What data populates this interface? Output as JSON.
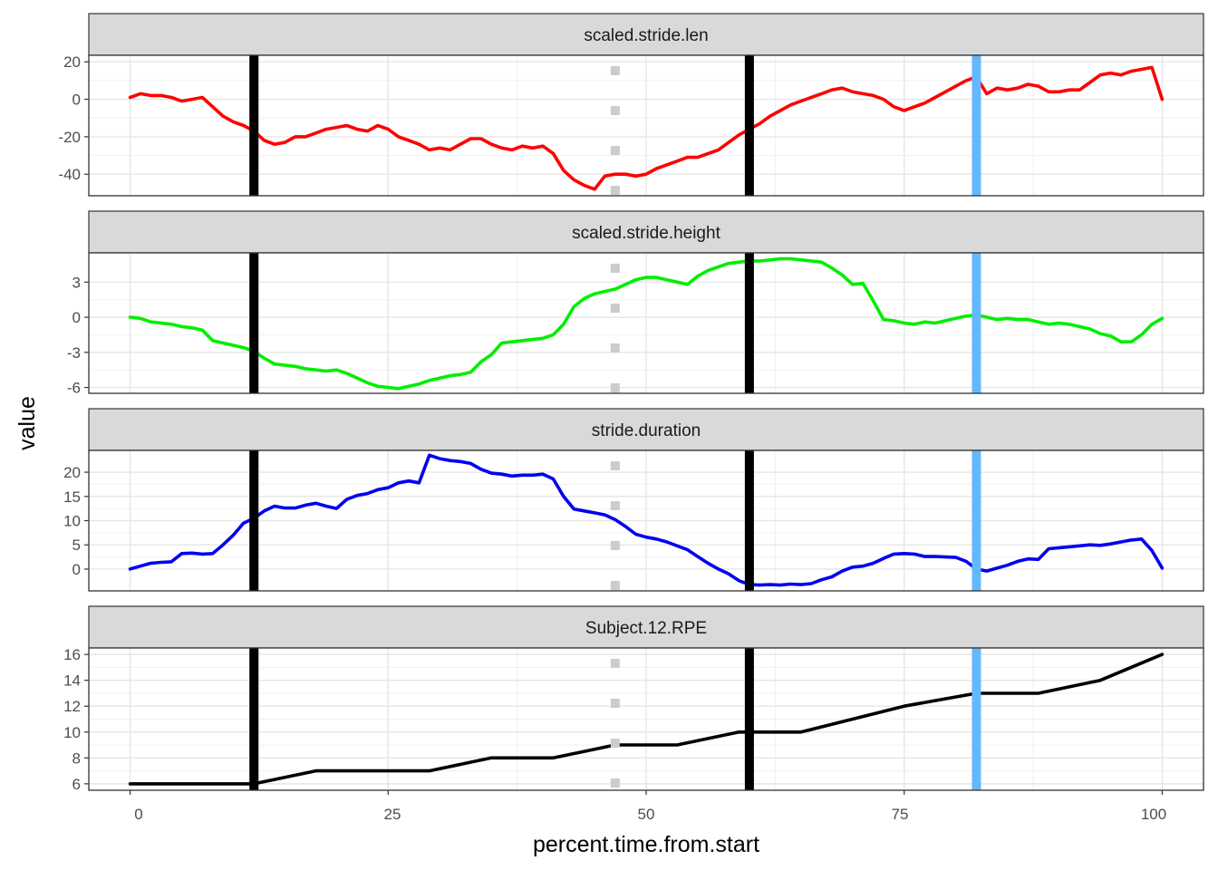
{
  "chart_data": {
    "type": "line",
    "x_label": "percent.time.from.start",
    "y_label": "value",
    "x_ticks": [
      "0",
      "25",
      "50",
      "75",
      "100"
    ],
    "xlim": [
      -4,
      104
    ],
    "vlines": [
      {
        "x": 12,
        "color": "#000000",
        "style": "solid"
      },
      {
        "x": 47,
        "color": "#cccccc",
        "style": "dotted"
      },
      {
        "x": 60,
        "color": "#000000",
        "style": "solid"
      },
      {
        "x": 82,
        "color": "#63b8ff",
        "style": "solid"
      }
    ],
    "panels": [
      {
        "title": "scaled.stride.len",
        "color": "#ff0000",
        "ylim": [
          -51.5,
          23.5
        ],
        "y_ticks": [
          20,
          0,
          -20,
          -40
        ],
        "y_tick_labels": [
          "20",
          "0",
          "-20",
          "-40"
        ],
        "x": [
          0,
          1,
          2,
          3,
          4,
          5,
          6,
          7,
          8,
          9,
          10,
          11,
          12,
          13,
          14,
          15,
          16,
          17,
          18,
          19,
          20,
          21,
          22,
          23,
          24,
          25,
          26,
          27,
          28,
          29,
          30,
          31,
          32,
          33,
          34,
          35,
          36,
          37,
          38,
          39,
          40,
          41,
          42,
          43,
          44,
          45,
          46,
          47,
          48,
          49,
          50,
          51,
          52,
          53,
          54,
          55,
          56,
          57,
          58,
          59,
          60,
          61,
          62,
          63,
          64,
          65,
          66,
          67,
          68,
          69,
          70,
          71,
          72,
          73,
          74,
          75,
          76,
          77,
          78,
          79,
          80,
          81,
          82,
          83,
          84,
          85,
          86,
          87,
          88,
          89,
          90,
          91,
          92,
          93,
          94,
          95,
          96,
          97,
          98,
          99,
          100
        ],
        "values": [
          1,
          3,
          2,
          2,
          1,
          -1,
          0,
          1,
          -4,
          -9,
          -12,
          -14,
          -17,
          -22,
          -24,
          -23,
          -20,
          -20,
          -18,
          -16,
          -15,
          -14,
          -16,
          -17,
          -14,
          -16,
          -20,
          -22,
          -24,
          -27,
          -26,
          -27,
          -24,
          -21,
          -21,
          -24,
          -26,
          -27,
          -25,
          -26,
          -25,
          -29,
          -38,
          -43,
          -46,
          -48,
          -41,
          -40,
          -40,
          -41,
          -40,
          -37,
          -35,
          -33,
          -31,
          -31,
          -29,
          -27,
          -23,
          -19,
          -16,
          -13,
          -9,
          -6,
          -3,
          -1,
          1,
          3,
          5,
          6,
          4,
          3,
          2,
          0,
          -4,
          -6,
          -4,
          -2,
          1,
          4,
          7,
          10,
          12,
          3,
          6,
          5,
          6,
          8,
          7,
          4,
          4,
          5,
          5,
          9,
          13,
          14,
          13,
          15,
          16,
          17,
          0
        ]
      },
      {
        "title": "scaled.stride.height",
        "color": "#00ee00",
        "ylim": [
          -6.5,
          5.5
        ],
        "y_ticks": [
          3,
          0,
          -3,
          -6
        ],
        "y_tick_labels": [
          "3",
          "0",
          "-3",
          "-6"
        ],
        "x": [
          0,
          1,
          2,
          3,
          4,
          5,
          6,
          7,
          8,
          9,
          10,
          11,
          12,
          13,
          14,
          15,
          16,
          17,
          18,
          19,
          20,
          21,
          22,
          23,
          24,
          25,
          26,
          27,
          28,
          29,
          30,
          31,
          32,
          33,
          34,
          35,
          36,
          37,
          38,
          39,
          40,
          41,
          42,
          43,
          44,
          45,
          46,
          47,
          48,
          49,
          50,
          51,
          52,
          53,
          54,
          55,
          56,
          57,
          58,
          59,
          60,
          61,
          62,
          63,
          64,
          65,
          66,
          67,
          68,
          69,
          70,
          71,
          72,
          73,
          74,
          75,
          76,
          77,
          78,
          79,
          80,
          81,
          82,
          83,
          84,
          85,
          86,
          87,
          88,
          89,
          90,
          91,
          92,
          93,
          94,
          95,
          96,
          97,
          98,
          99,
          100
        ],
        "values": [
          0,
          -0.1,
          -0.4,
          -0.5,
          -0.6,
          -0.8,
          -0.9,
          -1.1,
          -2.0,
          -2.2,
          -2.4,
          -2.6,
          -2.9,
          -3.5,
          -4.0,
          -4.1,
          -4.2,
          -4.4,
          -4.5,
          -4.6,
          -4.5,
          -4.8,
          -5.2,
          -5.6,
          -5.9,
          -6.0,
          -6.1,
          -5.9,
          -5.7,
          -5.4,
          -5.2,
          -5.0,
          -4.9,
          -4.7,
          -3.8,
          -3.2,
          -2.2,
          -2.1,
          -2.0,
          -1.9,
          -1.8,
          -1.5,
          -0.6,
          0.9,
          1.6,
          2.0,
          2.2,
          2.4,
          2.8,
          3.2,
          3.4,
          3.4,
          3.2,
          3.0,
          2.8,
          3.5,
          4.0,
          4.3,
          4.6,
          4.7,
          4.8,
          4.8,
          4.9,
          5.0,
          5.0,
          4.9,
          4.8,
          4.7,
          4.2,
          3.6,
          2.8,
          2.9,
          1.4,
          -0.2,
          -0.3,
          -0.5,
          -0.6,
          -0.4,
          -0.5,
          -0.3,
          -0.1,
          0.1,
          0.2,
          0.0,
          -0.2,
          -0.1,
          -0.2,
          -0.2,
          -0.4,
          -0.6,
          -0.5,
          -0.6,
          -0.8,
          -1.0,
          -1.4,
          -1.6,
          -2.1,
          -2.1,
          -1.5,
          -0.6,
          -0.1
        ]
      },
      {
        "title": "stride.duration",
        "color": "#0000ee",
        "ylim": [
          -4.5,
          24.5
        ],
        "y_ticks": [
          20,
          15,
          10,
          5,
          0
        ],
        "y_tick_labels": [
          "20",
          "15",
          "10",
          "5",
          "0"
        ],
        "x": [
          0,
          1,
          2,
          3,
          4,
          5,
          6,
          7,
          8,
          9,
          10,
          11,
          12,
          13,
          14,
          15,
          16,
          17,
          18,
          19,
          20,
          21,
          22,
          23,
          24,
          25,
          26,
          27,
          28,
          29,
          30,
          31,
          32,
          33,
          34,
          35,
          36,
          37,
          38,
          39,
          40,
          41,
          42,
          43,
          44,
          45,
          46,
          47,
          48,
          49,
          50,
          51,
          52,
          53,
          54,
          55,
          56,
          57,
          58,
          59,
          60,
          61,
          62,
          63,
          64,
          65,
          66,
          67,
          68,
          69,
          70,
          71,
          72,
          73,
          74,
          75,
          76,
          77,
          78,
          79,
          80,
          81,
          82,
          83,
          84,
          85,
          86,
          87,
          88,
          89,
          90,
          91,
          92,
          93,
          94,
          95,
          96,
          97,
          98,
          99,
          100
        ],
        "values": [
          0,
          0.6,
          1.2,
          1.4,
          1.5,
          3.2,
          3.3,
          3.1,
          3.2,
          5.0,
          7.0,
          9.5,
          10.5,
          12.0,
          13.0,
          12.6,
          12.6,
          13.2,
          13.6,
          13.0,
          12.5,
          14.4,
          15.2,
          15.6,
          16.4,
          16.8,
          17.8,
          18.2,
          17.8,
          23.5,
          22.8,
          22.4,
          22.2,
          21.8,
          20.6,
          19.8,
          19.6,
          19.2,
          19.4,
          19.4,
          19.6,
          18.6,
          15.0,
          12.4,
          12.0,
          11.6,
          11.2,
          10.2,
          8.8,
          7.2,
          6.6,
          6.2,
          5.6,
          4.8,
          4.0,
          2.6,
          1.2,
          0.0,
          -1.0,
          -2.4,
          -3.2,
          -3.3,
          -3.2,
          -3.3,
          -3.1,
          -3.2,
          -3.0,
          -2.2,
          -1.6,
          -0.4,
          0.4,
          0.6,
          1.2,
          2.2,
          3.1,
          3.2,
          3.1,
          2.6,
          2.6,
          2.5,
          2.4,
          1.6,
          0.0,
          -0.4,
          0.2,
          0.8,
          1.6,
          2.1,
          2.0,
          4.2,
          4.4,
          4.6,
          4.8,
          5.0,
          4.9,
          5.2,
          5.6,
          6.0,
          6.2,
          3.8,
          0.2
        ]
      },
      {
        "title": "Subject.12.RPE",
        "color": "#000000",
        "ylim": [
          5.5,
          16.5
        ],
        "y_ticks": [
          16,
          14,
          12,
          10,
          8,
          6
        ],
        "y_tick_labels": [
          "16",
          "14",
          "12",
          "10",
          "8",
          "6"
        ],
        "x": [
          0,
          12,
          18,
          29,
          35,
          41,
          47,
          53,
          59,
          65,
          70,
          75,
          82,
          88,
          94,
          100
        ],
        "values": [
          6,
          6,
          7,
          7,
          8,
          8,
          9,
          9,
          10,
          10,
          11,
          12,
          13,
          13,
          14,
          16
        ]
      }
    ]
  }
}
